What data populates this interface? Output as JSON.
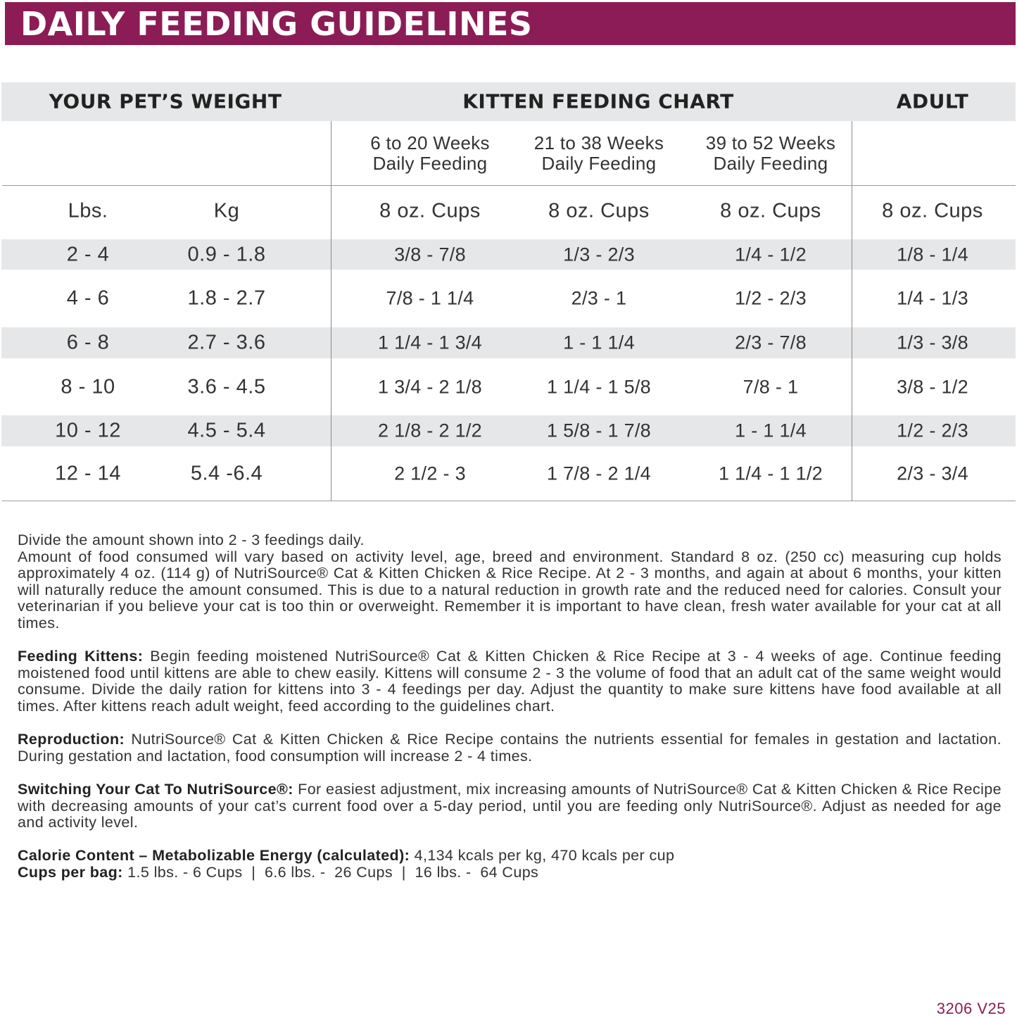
{
  "title": "DAILY FEEDING GUIDELINES",
  "colors": {
    "brand": "#8c1c55",
    "row_shade": "#e6e7e8"
  },
  "table": {
    "group_headers": [
      "YOUR PET’S WEIGHT",
      "KITTEN FEEDING CHART",
      "ADULT"
    ],
    "age_headers": [
      {
        "line1": "6 to 20 Weeks",
        "line2": "Daily Feeding"
      },
      {
        "line1": "21 to 38 Weeks",
        "line2": "Daily Feeding"
      },
      {
        "line1": "39 to 52 Weeks",
        "line2": "Daily Feeding"
      }
    ],
    "unit_headers": [
      "Lbs.",
      "Kg",
      "8 oz. Cups",
      "8 oz. Cups",
      "8 oz. Cups",
      "8 oz. Cups"
    ],
    "rows": [
      {
        "lbs": "2 - 4",
        "kg": "0.9 - 1.8",
        "w6_20": "3/8 - 7/8",
        "w21_38": "1/3 - 2/3",
        "w39_52": "1/4 - 1/2",
        "adult": "1/8 - 1/4",
        "shaded": true
      },
      {
        "lbs": "4 - 6",
        "kg": "1.8 - 2.7",
        "w6_20": "7/8 - 1 1/4",
        "w21_38": "2/3 - 1",
        "w39_52": "1/2 - 2/3",
        "adult": "1/4 - 1/3",
        "shaded": false
      },
      {
        "lbs": "6 - 8",
        "kg": "2.7 - 3.6",
        "w6_20": "1 1/4 - 1 3/4",
        "w21_38": "1 - 1 1/4",
        "w39_52": "2/3 - 7/8",
        "adult": "1/3 - 3/8",
        "shaded": true
      },
      {
        "lbs": "8 - 10",
        "kg": "3.6 - 4.5",
        "w6_20": "1 3/4 - 2 1/8",
        "w21_38": "1 1/4 - 1 5/8",
        "w39_52": "7/8 - 1",
        "adult": "3/8 - 1/2",
        "shaded": false
      },
      {
        "lbs": "10 - 12",
        "kg": "4.5 - 5.4",
        "w6_20": "2 1/8 - 2 1/2",
        "w21_38": "1 5/8 - 1 7/8",
        "w39_52": "1 - 1 1/4",
        "adult": "1/2 - 2/3",
        "shaded": true
      },
      {
        "lbs": "12 - 14",
        "kg": "5.4 -6.4",
        "w6_20": "2 1/2 - 3",
        "w21_38": "1 7/8 - 2 1/4",
        "w39_52": "1 1/4 - 1 1/2",
        "adult": "2/3 - 3/4",
        "shaded": false
      }
    ]
  },
  "notes": {
    "intro": "Divide the amount shown into 2 - 3 feedings daily.",
    "general": "Amount of food consumed will vary based on activity level, age, breed and environment. Standard 8 oz. (250 cc) measuring cup holds approximately 4 oz. (114 g) of NutriSource® Cat & Kitten Chicken & Rice Recipe. At 2 - 3 months, and again at about 6 months, your kitten will naturally reduce the amount consumed. This is due to a natural reduction in growth rate and the reduced need for calories. Consult your veterinarian if you believe your cat is too thin or overweight. Remember it is important to have clean, fresh water available for your cat at all times.",
    "kittens_label": "Feeding Kittens:",
    "kittens_text": " Begin feeding moistened NutriSource® Cat & Kitten Chicken & Rice Recipe at 3 - 4 weeks of age. Continue feeding moistened food until kittens are able to chew easily. Kittens will consume 2 - 3 the volume of food that an adult cat of the same weight would consume. Divide the daily ration for kittens into 3 - 4 feedings per day. Adjust the quantity to make sure kittens have food available at all times. After kittens reach adult weight, feed according to the guidelines chart.",
    "repro_label": "Reproduction:",
    "repro_text": " NutriSource® Cat & Kitten Chicken & Rice Recipe contains the nutrients essential for females in gestation and lactation. During gestation and lactation, food consumption will increase 2 - 4 times.",
    "switch_label": "Switching Your Cat To NutriSource®:",
    "switch_text": " For easiest adjustment, mix increasing amounts of NutriSource® Cat & Kitten Chicken & Rice Recipe with decreasing amounts of your cat’s current food over a 5-day period, until you are feeding only NutriSource®. Adjust as needed for age and activity level.",
    "calorie_label": "Calorie Content – Metabolizable Energy (calculated):",
    "calorie_text": " 4,134 kcals per kg, 470 kcals per cup",
    "cups_label": "Cups per bag:",
    "cups_text": " 1.5 lbs. - 6 Cups  |  6.6 lbs. -  26 Cups  |  16 lbs. -  64 Cups"
  },
  "footer_code": "3206 V25"
}
